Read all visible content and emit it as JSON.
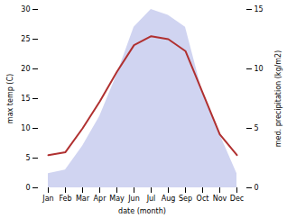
{
  "chart_data": {
    "type": "line",
    "categories": [
      "Jan",
      "Feb",
      "Mar",
      "Apr",
      "May",
      "Jun",
      "Jul",
      "Aug",
      "Sep",
      "Oct",
      "Nov",
      "Dec"
    ],
    "xlabel": "date (month)",
    "ylabel": "max temp (C)",
    "y2label": "med. precipitation (kg/m2)",
    "ylim": [
      0,
      30
    ],
    "yticks": [
      0,
      5,
      10,
      15,
      20,
      25,
      30
    ],
    "y2lim": [
      0,
      15
    ],
    "y2ticks": [
      0,
      5,
      10,
      15
    ],
    "grid": false,
    "series": [
      {
        "type": "area",
        "axis": "y2",
        "color": "#b0b8e8",
        "values": [
          1.2,
          1.5,
          3.5,
          6.0,
          9.5,
          13.5,
          15.0,
          14.5,
          13.5,
          8.0,
          4.5,
          1.2
        ]
      },
      {
        "type": "line",
        "color": "#b03030",
        "values": [
          5.5,
          6.0,
          10.0,
          14.5,
          19.5,
          24.0,
          25.5,
          25.0,
          23.0,
          16.0,
          9.0,
          5.5
        ]
      }
    ]
  }
}
